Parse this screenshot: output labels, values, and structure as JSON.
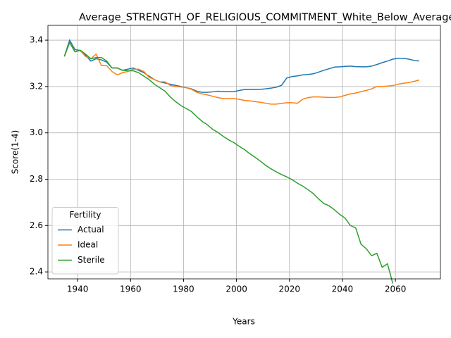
{
  "chart_data": {
    "type": "line",
    "title": "Average_STRENGTH_OF_RELIGIOUS_COMMITMENT_White_Below_Average_",
    "x_label": "Years",
    "y_label": "Score(1-4)",
    "x": [
      1935,
      1937,
      1939,
      1941,
      1943,
      1945,
      1947,
      1949,
      1951,
      1953,
      1955,
      1957,
      1959,
      1961,
      1963,
      1965,
      1967,
      1969,
      1971,
      1973,
      1975,
      1977,
      1979,
      1981,
      1983,
      1985,
      1987,
      1989,
      1991,
      1993,
      1995,
      1997,
      1999,
      2001,
      2003,
      2005,
      2007,
      2009,
      2011,
      2013,
      2015,
      2017,
      2019,
      2021,
      2023,
      2025,
      2027,
      2029,
      2031,
      2033,
      2035,
      2037,
      2039,
      2041,
      2043,
      2045,
      2047,
      2049,
      2051,
      2053,
      2055,
      2057,
      2059,
      2061,
      2063,
      2065,
      2067,
      2069
    ],
    "series": [
      {
        "name": "Actual",
        "color": "#1f77b4",
        "values": [
          3.33,
          3.4,
          3.36,
          3.355,
          3.335,
          3.31,
          3.32,
          3.315,
          3.305,
          3.28,
          3.28,
          3.27,
          3.275,
          3.28,
          3.27,
          3.26,
          3.245,
          3.23,
          3.22,
          3.215,
          3.21,
          3.205,
          3.2,
          3.195,
          3.19,
          3.18,
          3.175,
          3.175,
          3.177,
          3.18,
          3.178,
          3.178,
          3.178,
          3.183,
          3.187,
          3.187,
          3.187,
          3.188,
          3.19,
          3.193,
          3.197,
          3.205,
          3.237,
          3.243,
          3.246,
          3.25,
          3.252,
          3.255,
          3.262,
          3.27,
          3.277,
          3.284,
          3.285,
          3.287,
          3.288,
          3.286,
          3.285,
          3.285,
          3.288,
          3.295,
          3.303,
          3.31,
          3.318,
          3.322,
          3.322,
          3.318,
          3.313,
          3.31
        ]
      },
      {
        "name": "Ideal",
        "color": "#ff7f0e",
        "values": [
          3.33,
          3.39,
          3.35,
          3.355,
          3.33,
          3.32,
          3.34,
          3.29,
          3.29,
          3.265,
          3.25,
          3.26,
          3.265,
          3.275,
          3.275,
          3.265,
          3.24,
          3.23,
          3.22,
          3.22,
          3.205,
          3.2,
          3.198,
          3.195,
          3.188,
          3.175,
          3.168,
          3.164,
          3.158,
          3.152,
          3.148,
          3.148,
          3.148,
          3.145,
          3.14,
          3.138,
          3.135,
          3.132,
          3.128,
          3.124,
          3.124,
          3.127,
          3.13,
          3.13,
          3.128,
          3.145,
          3.152,
          3.155,
          3.155,
          3.154,
          3.153,
          3.153,
          3.155,
          3.162,
          3.168,
          3.172,
          3.178,
          3.183,
          3.19,
          3.2,
          3.2,
          3.202,
          3.204,
          3.21,
          3.214,
          3.217,
          3.222,
          3.228
        ]
      },
      {
        "name": "Sterile",
        "color": "#2ca02c",
        "values": [
          3.33,
          3.39,
          3.35,
          3.357,
          3.34,
          3.32,
          3.325,
          3.325,
          3.31,
          3.28,
          3.28,
          3.27,
          3.268,
          3.268,
          3.26,
          3.245,
          3.23,
          3.21,
          3.195,
          3.18,
          3.155,
          3.135,
          3.118,
          3.105,
          3.092,
          3.07,
          3.05,
          3.035,
          3.015,
          3.002,
          2.985,
          2.97,
          2.958,
          2.942,
          2.928,
          2.91,
          2.895,
          2.878,
          2.86,
          2.845,
          2.832,
          2.82,
          2.81,
          2.798,
          2.783,
          2.77,
          2.755,
          2.738,
          2.715,
          2.695,
          2.685,
          2.668,
          2.648,
          2.632,
          2.6,
          2.59,
          2.52,
          2.5,
          2.47,
          2.48,
          2.42,
          2.435,
          2.35,
          null,
          null,
          null,
          null,
          null
        ]
      }
    ],
    "xlim": [
      1928.8,
      2077
    ],
    "ylim": [
      2.37,
      3.464
    ],
    "xticks": [
      1940,
      1960,
      1980,
      2000,
      2020,
      2040,
      2060
    ],
    "yticks": [
      2.4,
      2.6,
      2.8,
      {
        "value": 3.0,
        "label": "3.0"
      },
      3.2,
      3.4
    ],
    "grid": true,
    "legend_title": "Fertility",
    "legend_loc": "lower left"
  }
}
